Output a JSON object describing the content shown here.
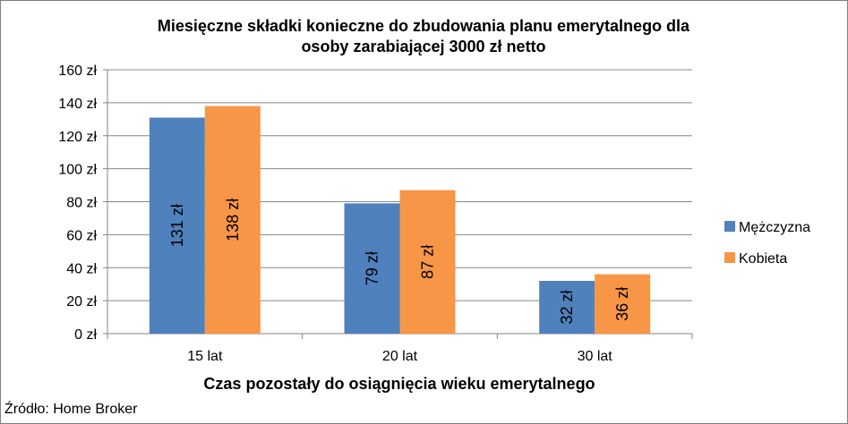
{
  "chart_data": {
    "type": "bar",
    "title": "Miesięczne składki konieczne do zbudowania planu emerytalnego dla osoby zarabiającej 3000 zł netto",
    "title_lines": [
      "Miesięczne składki konieczne do zbudowania planu emerytalnego dla",
      "osoby zarabiającej 3000 zł netto"
    ],
    "xlabel": "Czas pozostały do osiągnięcia wieku emerytalnego",
    "ylabel": "",
    "categories": [
      "15 lat",
      "20 lat",
      "30 lat"
    ],
    "series": [
      {
        "name": "Mężczyzna",
        "color": "#4f81bd",
        "values": [
          131,
          79,
          32
        ],
        "labels": [
          "131 zł",
          "79 zł",
          "32 zł"
        ]
      },
      {
        "name": "Kobieta",
        "color": "#f79646",
        "values": [
          138,
          87,
          36
        ],
        "labels": [
          "138 zł",
          "87 zł",
          "36 zł"
        ]
      }
    ],
    "ylim": [
      0,
      160
    ],
    "yticks": [
      0,
      20,
      40,
      60,
      80,
      100,
      120,
      140,
      160
    ],
    "ytick_labels": [
      "0 zł",
      "20 zł",
      "40 zł",
      "60 zł",
      "80 zł",
      "100 zł",
      "120 zł",
      "140 zł",
      "160 zł"
    ],
    "grid": true,
    "legend_position": "right",
    "source": "Źródło: Home Broker"
  }
}
